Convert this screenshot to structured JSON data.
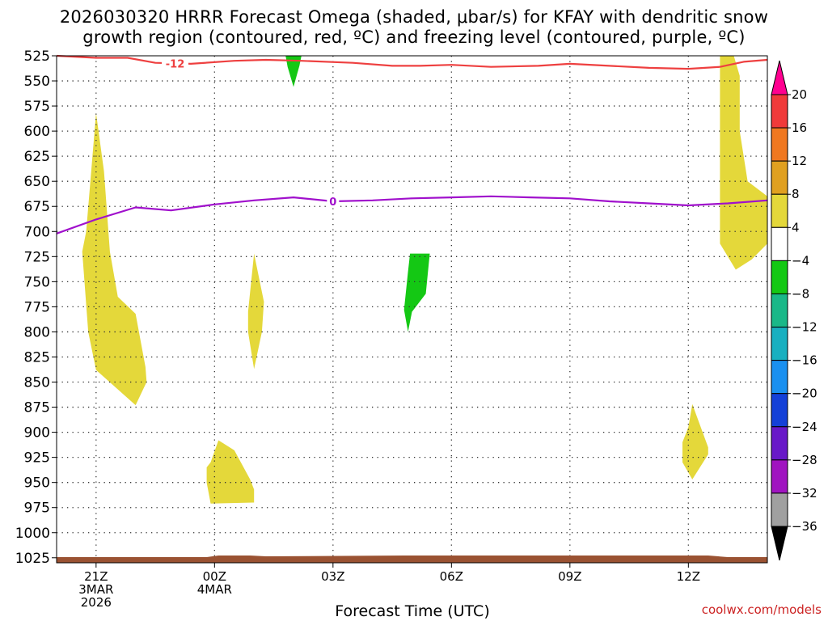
{
  "title_line1": "2026030320 HRRR Forecast Omega (shaded, μbar/s) for KFAY with dendritic snow",
  "title_line2": "growth region (contoured, red, ºC) and freezing level (contoured, purple, ºC)",
  "watermark": "coolwx.com/models",
  "chart_data": {
    "type": "time-height cross section",
    "title": "2026030320 HRRR Forecast Omega (shaded, μbar/s) for KFAY with dendritic snow growth region (contoured, red, ºC) and freezing level (contoured, purple, ºC)",
    "xlabel": "Forecast Time (UTC)",
    "ylabel": "",
    "x_hours_range": [
      -1,
      17
    ],
    "y_pressure_range": [
      1030,
      525
    ],
    "y_ticks": [
      525,
      550,
      575,
      600,
      625,
      650,
      675,
      700,
      725,
      750,
      775,
      800,
      825,
      850,
      875,
      900,
      925,
      950,
      975,
      1000,
      1025
    ],
    "x_ticks": [
      {
        "hour": 0,
        "lines": [
          "21Z",
          "3MAR",
          "2026"
        ]
      },
      {
        "hour": 3,
        "lines": [
          "00Z",
          "4MAR"
        ]
      },
      {
        "hour": 6,
        "lines": [
          "03Z"
        ]
      },
      {
        "hour": 9,
        "lines": [
          "06Z"
        ]
      },
      {
        "hour": 12,
        "lines": [
          "09Z"
        ]
      },
      {
        "hour": 15,
        "lines": [
          "12Z"
        ]
      }
    ],
    "grid": true,
    "colorbar": {
      "labels": [
        "20",
        "16",
        "12",
        "8",
        "4",
        "-4",
        "-8",
        "-12",
        "-16",
        "-20",
        "-24",
        "-28",
        "-32",
        "-36"
      ],
      "colors": [
        "#ff0090",
        "#f03a3a",
        "#f07820",
        "#e0a020",
        "#e4d83a",
        "#ffffff",
        "#14c814",
        "#1ab888",
        "#18b0c0",
        "#1a90f0",
        "#1440d8",
        "#6818c8",
        "#a014c0",
        "#a0a0a0",
        "#000000"
      ]
    },
    "contours": [
      {
        "label": "-12",
        "color": "#ee4040",
        "label_at_hour": 2.0,
        "points": [
          [
            -1,
            525
          ],
          [
            0,
            527
          ],
          [
            0.8,
            527
          ],
          [
            1.5,
            532
          ],
          [
            2.4,
            533
          ],
          [
            3.5,
            530
          ],
          [
            4.3,
            529
          ],
          [
            5.2,
            530
          ],
          [
            6.5,
            532
          ],
          [
            7.5,
            535
          ],
          [
            8.2,
            535
          ],
          [
            9.0,
            534
          ],
          [
            10.0,
            536
          ],
          [
            11.2,
            535
          ],
          [
            12.0,
            533
          ],
          [
            13.0,
            535
          ],
          [
            14.0,
            537
          ],
          [
            15.0,
            538
          ],
          [
            15.8,
            536
          ],
          [
            16.4,
            531
          ],
          [
            17,
            529
          ]
        ]
      },
      {
        "label": "0",
        "color": "#a010cc",
        "label_at_hour": 6.0,
        "points": [
          [
            -1,
            702
          ],
          [
            0,
            688
          ],
          [
            1.0,
            676
          ],
          [
            1.9,
            679
          ],
          [
            3.0,
            673
          ],
          [
            4.0,
            669
          ],
          [
            5.0,
            666
          ],
          [
            6.0,
            670
          ],
          [
            7.0,
            669
          ],
          [
            8.0,
            667
          ],
          [
            9.0,
            666
          ],
          [
            10.0,
            665
          ],
          [
            11.0,
            666
          ],
          [
            12.0,
            667
          ],
          [
            13.0,
            670
          ],
          [
            14.0,
            672
          ],
          [
            15.0,
            674
          ],
          [
            16.0,
            672
          ],
          [
            17,
            669
          ]
        ]
      }
    ],
    "shaded_regions": [
      {
        "color": "#e4d83a",
        "range": "4 to 8",
        "points": [
          [
            -0.25,
            700
          ],
          [
            0.0,
            582
          ],
          [
            0.2,
            640
          ],
          [
            0.35,
            720
          ],
          [
            0.55,
            765
          ],
          [
            1.0,
            782
          ],
          [
            1.25,
            835
          ],
          [
            1.28,
            850
          ],
          [
            1.0,
            873
          ],
          [
            0.0,
            838
          ],
          [
            -0.2,
            800
          ],
          [
            -0.35,
            720
          ]
        ]
      },
      {
        "color": "#e4d83a",
        "range": "4 to 8",
        "points": [
          [
            2.9,
            930
          ],
          [
            3.1,
            908
          ],
          [
            3.5,
            918
          ],
          [
            3.9,
            947
          ],
          [
            4.0,
            957
          ],
          [
            4.0,
            970
          ],
          [
            2.9,
            971
          ],
          [
            2.8,
            950
          ],
          [
            2.8,
            935
          ]
        ]
      },
      {
        "color": "#e4d83a",
        "range": "4 to 8",
        "points": [
          [
            3.85,
            780
          ],
          [
            4.0,
            722
          ],
          [
            4.25,
            770
          ],
          [
            4.2,
            800
          ],
          [
            4.0,
            837
          ],
          [
            3.85,
            800
          ]
        ]
      },
      {
        "color": "#e4d83a",
        "range": "4 to 8",
        "points": [
          [
            15.0,
            895
          ],
          [
            15.1,
            872
          ],
          [
            15.5,
            915
          ],
          [
            15.5,
            922
          ],
          [
            15.1,
            947
          ],
          [
            14.85,
            930
          ],
          [
            14.85,
            910
          ]
        ]
      },
      {
        "color": "#e4d83a",
        "range": "4 to 8",
        "points": [
          [
            15.8,
            525
          ],
          [
            16.15,
            525
          ],
          [
            16.3,
            545
          ],
          [
            16.3,
            600
          ],
          [
            16.5,
            650
          ],
          [
            17,
            665
          ],
          [
            17,
            712
          ],
          [
            16.6,
            728
          ],
          [
            16.2,
            738
          ],
          [
            15.8,
            712
          ],
          [
            15.8,
            600
          ]
        ]
      },
      {
        "color": "#14c814",
        "range": "-8 to -4",
        "points": [
          [
            4.8,
            525
          ],
          [
            5.2,
            525
          ],
          [
            5.15,
            535
          ],
          [
            5.0,
            556
          ],
          [
            4.85,
            536
          ]
        ]
      },
      {
        "color": "#14c814",
        "range": "-8 to -4",
        "points": [
          [
            7.95,
            722
          ],
          [
            8.45,
            722
          ],
          [
            8.35,
            762
          ],
          [
            8.0,
            780
          ],
          [
            7.9,
            800
          ],
          [
            7.8,
            778
          ],
          [
            7.9,
            740
          ]
        ]
      }
    ],
    "surface_band_color": "#9a5232"
  }
}
